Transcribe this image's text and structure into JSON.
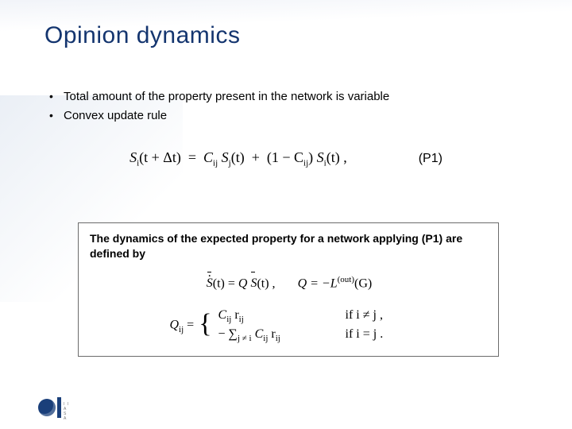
{
  "colors": {
    "title": "#14356f",
    "text": "#000000",
    "box_border": "#6b6b6b",
    "logo": "#1a3f7a",
    "bg_tint": "#c8d2e6"
  },
  "title": "Opinion dynamics",
  "bullets": [
    "Total amount of the property present in the network is variable",
    "Convex update rule"
  ],
  "equation_p1": {
    "lhs": "S",
    "arg_lhs": "(t + Δt)",
    "rhs_a_coef": "C",
    "rhs_a_arg": "(t)",
    "rhs_b_coef": "(1 − C",
    "rhs_b_coef_close": ")",
    "rhs_b_arg": "(t) ,",
    "label": "(P1)"
  },
  "box": {
    "lead": "The dynamics of the expected property for a network applying (P1) are defined by",
    "line1_a": "(t) = ",
    "line1_q": "Q",
    "line1_b": "(t) ,",
    "line1_c": "Q = −L",
    "line1_sup": "(out)",
    "line1_d": "(G)",
    "q_lhs": "Q",
    "eq_sign": " = ",
    "case1_expr": "C",
    "case1_expr_tail": " r",
    "case1_cond": "if i ≠ j ,",
    "case2_prefix": "− ∑",
    "case2_sum_sub": "j ≠ i",
    "case2_expr": " C",
    "case2_expr_tail": " r",
    "case2_cond": "if i = j .",
    "sub_i": "i",
    "sub_j": "j",
    "sub_ij": "ij"
  },
  "logo_text": "I I A S A"
}
